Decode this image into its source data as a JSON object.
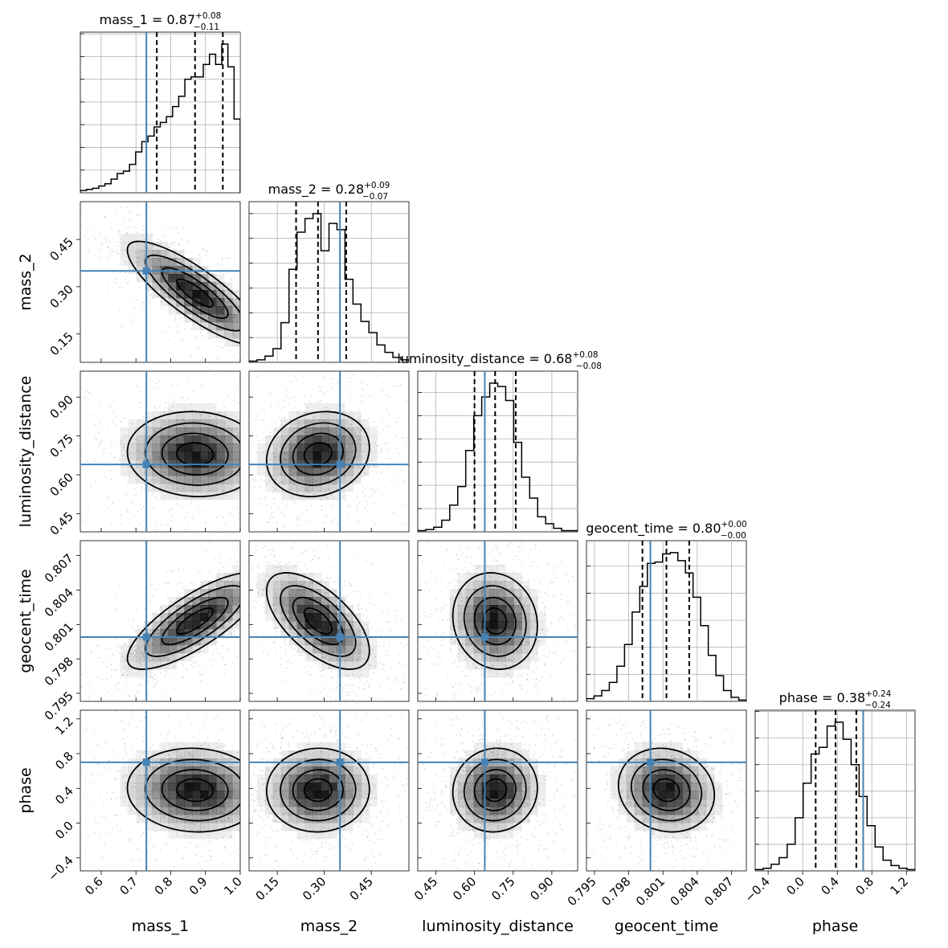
{
  "chart_data": {
    "type": "scatter",
    "plot_kind": "corner",
    "quantiles": [
      0.16,
      0.5,
      0.84
    ],
    "parameters": [
      {
        "name": "mass_1",
        "range": [
          0.54,
          1.0
        ],
        "ticks": [
          0.6,
          0.7,
          0.8,
          0.9,
          1.0
        ],
        "tick_labels": [
          "0.6",
          "0.7",
          "0.8",
          "0.9",
          "1.0"
        ],
        "title": {
          "label": "mass_1 = 0.87",
          "plus": "+0.08",
          "minus": "−0.11"
        },
        "median": 0.87,
        "q_low": 0.76,
        "q_high": 0.95,
        "truth": 0.73,
        "hist": [
          2,
          3,
          4,
          6,
          8,
          12,
          17,
          19,
          25,
          36,
          45,
          50,
          58,
          62,
          67,
          76,
          85,
          100,
          102,
          102,
          113,
          122,
          113,
          131,
          111,
          65
        ]
      },
      {
        "name": "mass_2",
        "range": [
          0.06,
          0.57
        ],
        "ticks": [
          0.15,
          0.3,
          0.45
        ],
        "tick_labels": [
          "0.15",
          "0.30",
          "0.45"
        ],
        "title": {
          "label": "mass_2 = 0.28",
          "plus": "+0.09",
          "minus": "−0.07"
        },
        "median": 0.28,
        "q_low": 0.21,
        "q_high": 0.37,
        "truth": 0.35,
        "hist": [
          1,
          2,
          5,
          11,
          32,
          75,
          105,
          116,
          120,
          90,
          112,
          107,
          67,
          47,
          33,
          24,
          14,
          8,
          4,
          2
        ]
      },
      {
        "name": "luminosity_distance",
        "range": [
          0.38,
          1.0
        ],
        "ticks": [
          0.45,
          0.6,
          0.75,
          0.9
        ],
        "tick_labels": [
          "0.45",
          "0.60",
          "0.75",
          "0.90"
        ],
        "title": {
          "label": "luminosity_distance = 0.68",
          "plus": "+0.08",
          "minus": "−0.08"
        },
        "median": 0.68,
        "q_low": 0.6,
        "q_high": 0.76,
        "truth": 0.64,
        "hist": [
          1,
          2,
          4,
          10,
          23,
          39,
          70,
          100,
          116,
          128,
          125,
          113,
          77,
          47,
          29,
          13,
          7,
          3,
          1,
          1
        ]
      },
      {
        "name": "geocent_time",
        "range": [
          0.7943,
          0.8083
        ],
        "ticks": [
          0.795,
          0.798,
          0.801,
          0.804,
          0.807
        ],
        "tick_labels": [
          "0.795",
          "0.798",
          "0.801",
          "0.804",
          "0.807"
        ],
        "title": {
          "label": "geocent_time = 0.80",
          "plus": "+0.00",
          "minus": "−0.00"
        },
        "median": 0.8013,
        "q_low": 0.7992,
        "q_high": 0.8033,
        "truth": 0.7999,
        "hist": [
          2,
          4,
          8,
          14,
          26,
          42,
          66,
          85,
          102,
          103,
          109,
          110,
          104,
          95,
          77,
          56,
          34,
          19,
          8,
          3,
          1
        ]
      },
      {
        "name": "phase",
        "range": [
          -0.55,
          1.3
        ],
        "ticks": [
          -0.4,
          0.0,
          0.4,
          0.8,
          1.2
        ],
        "tick_labels": [
          "−0.4",
          "0.0",
          "0.4",
          "0.8",
          "1.2"
        ],
        "title": {
          "label": "phase = 0.38",
          "plus": "+0.24",
          "minus": "−0.24"
        },
        "median": 0.38,
        "q_low": 0.15,
        "q_high": 0.62,
        "truth": 0.7,
        "hist": [
          1,
          2,
          5,
          10,
          20,
          40,
          66,
          88,
          93,
          109,
          112,
          99,
          80,
          56,
          34,
          18,
          8,
          4,
          2,
          1
        ]
      }
    ],
    "correlations": {
      "1-0": -0.83,
      "2-0": -0.05,
      "2-1": 0.15,
      "3-0": 0.78,
      "3-1": -0.62,
      "3-2": -0.1,
      "4-0": -0.05,
      "4-1": 0.02,
      "4-2": 0.05,
      "4-3": -0.12
    }
  }
}
